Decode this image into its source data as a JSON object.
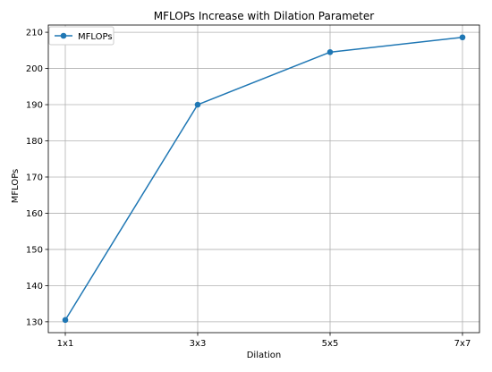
{
  "chart_data": {
    "type": "line",
    "title": "MFLOPs Increase with Dilation Parameter",
    "xlabel": "Dilation",
    "ylabel": "MFLOPs",
    "categories": [
      "1x1",
      "3x3",
      "5x5",
      "7x7"
    ],
    "series": [
      {
        "name": "MFLOPs",
        "values": [
          130.5,
          190.0,
          204.5,
          208.6
        ],
        "color": "#1f77b4",
        "marker": "circle"
      }
    ],
    "ylim": [
      127.0,
      212.0
    ],
    "yticks": [
      130,
      140,
      150,
      160,
      170,
      180,
      190,
      200,
      210
    ],
    "grid": true,
    "legend": "top-left"
  }
}
